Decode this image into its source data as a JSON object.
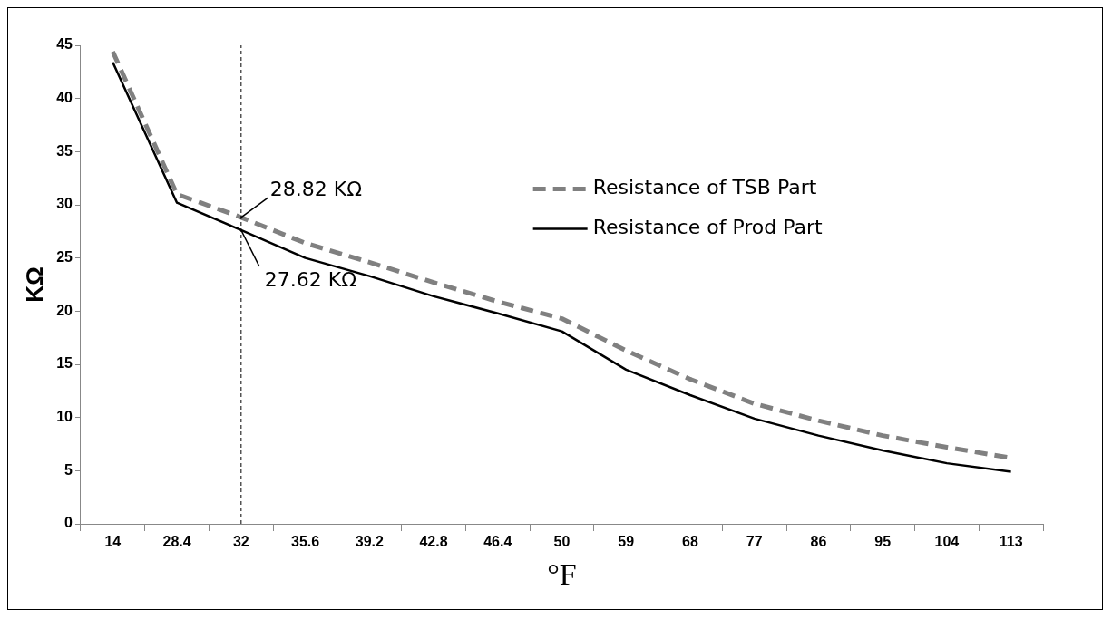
{
  "chart_data": {
    "type": "line",
    "xlabel": "°F",
    "ylabel": "KΩ",
    "categories": [
      "14",
      "28.4",
      "32",
      "35.6",
      "39.2",
      "42.8",
      "46.4",
      "50",
      "59",
      "68",
      "77",
      "86",
      "95",
      "104",
      "113"
    ],
    "series": [
      {
        "name": "Resistance of TSB Part",
        "color": "#808080",
        "line_style": "dashed",
        "values": [
          44.4,
          31.0,
          28.82,
          26.4,
          24.6,
          22.7,
          20.9,
          19.3,
          16.3,
          13.6,
          11.3,
          9.7,
          8.3,
          7.2,
          6.2
        ]
      },
      {
        "name": "Resistance of Prod Part",
        "color": "#000000",
        "line_style": "solid",
        "values": [
          43.4,
          30.2,
          27.62,
          25.0,
          23.3,
          21.4,
          19.8,
          18.1,
          14.5,
          12.1,
          9.9,
          8.3,
          6.9,
          5.7,
          4.9
        ]
      }
    ],
    "ylim": [
      0,
      45
    ],
    "yticks": [
      0,
      5,
      10,
      15,
      20,
      25,
      30,
      35,
      40,
      45
    ],
    "grid": false,
    "legend": "top right",
    "marker": "none",
    "ref_lines": [
      {
        "axis": "x",
        "value": "32",
        "color": "#000000",
        "line_style": "dashed"
      }
    ],
    "annotations": [
      {
        "text": "28.82 KΩ",
        "x": "32",
        "y": 28.82
      },
      {
        "text": "27.62 KΩ",
        "x": "32",
        "y": 27.62
      }
    ]
  }
}
